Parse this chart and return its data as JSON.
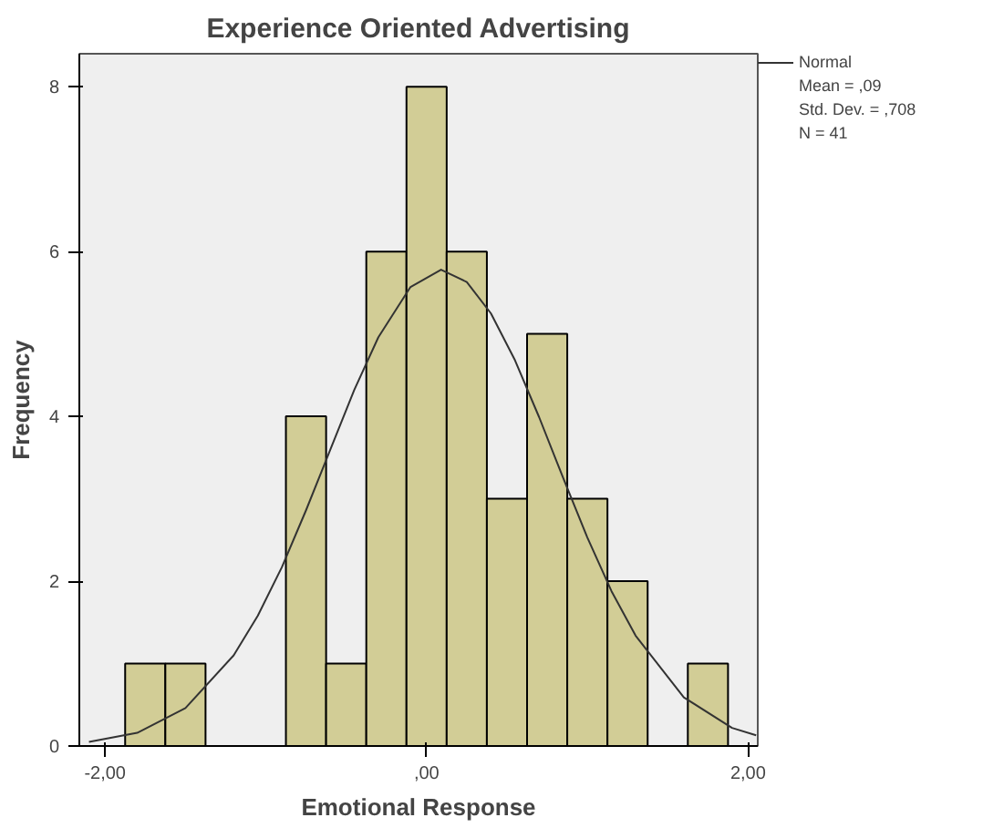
{
  "chart_data": {
    "type": "histogram",
    "title": "Experience Oriented Advertising",
    "xlabel": "Emotional Response",
    "ylabel": "Frequency",
    "annotations": [
      "Mean = ,09",
      "Std. Dev. = ,708",
      "N = 41"
    ],
    "series": [
      {
        "type": "histogram",
        "color": "#d2cd96",
        "bins": [
          -1.875,
          -1.625,
          -1.375,
          -1.125,
          -0.875,
          -0.625,
          -0.375,
          -0.125,
          0.125,
          0.375,
          0.625,
          0.875,
          1.125,
          1.375,
          1.625,
          1.875
        ],
        "values": [
          1,
          1,
          0,
          0,
          4,
          1,
          6,
          8,
          6,
          3,
          5,
          3,
          2,
          0,
          1
        ]
      },
      {
        "type": "line",
        "name": "Normal",
        "color": "#333333",
        "x": [
          -2.1,
          -1.8,
          -1.5,
          -1.2,
          -1.05,
          -0.9,
          -0.75,
          -0.6,
          -0.45,
          -0.3,
          -0.1,
          0.09,
          0.25,
          0.4,
          0.55,
          0.7,
          0.85,
          1.0,
          1.15,
          1.3,
          1.6,
          1.9,
          2.05
        ],
        "values": [
          0.05,
          0.16,
          0.46,
          1.1,
          1.58,
          2.17,
          2.86,
          3.59,
          4.32,
          4.96,
          5.57,
          5.78,
          5.63,
          5.25,
          4.68,
          3.99,
          3.25,
          2.53,
          1.88,
          1.34,
          0.59,
          0.22,
          0.13
        ]
      }
    ],
    "xlim": [
      -2.16,
      2.06
    ],
    "ylim": [
      0,
      8.4
    ],
    "xticks": [
      {
        "value": -2,
        "label": "-2,00"
      },
      {
        "value": 0,
        "label": ",00"
      },
      {
        "value": 2,
        "label": "2,00"
      }
    ],
    "yticks": [
      0,
      2,
      4,
      6,
      8
    ],
    "grid": false,
    "legend": "top right",
    "marker": "none",
    "line_style": "solid"
  }
}
